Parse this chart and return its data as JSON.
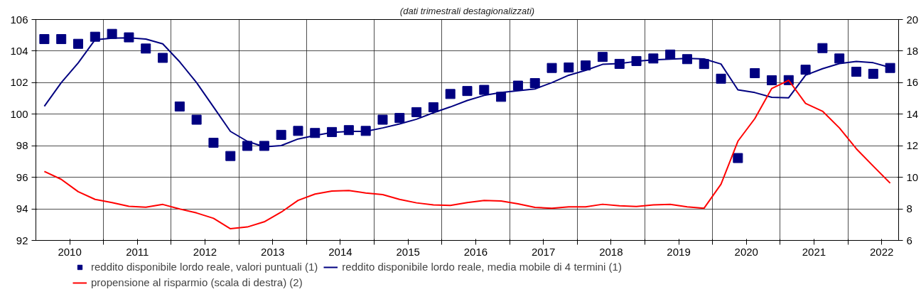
{
  "chart_data": {
    "type": "line",
    "subtitle": "(dati trimestrali destagionalizzati)",
    "x": [
      2010.125,
      2010.375,
      2010.625,
      2010.875,
      2011.125,
      2011.375,
      2011.625,
      2011.875,
      2012.125,
      2012.375,
      2012.625,
      2012.875,
      2013.125,
      2013.375,
      2013.625,
      2013.875,
      2014.125,
      2014.375,
      2014.625,
      2014.875,
      2015.125,
      2015.375,
      2015.625,
      2015.875,
      2016.125,
      2016.375,
      2016.625,
      2016.875,
      2017.125,
      2017.375,
      2017.625,
      2017.875,
      2018.125,
      2018.375,
      2018.625,
      2018.875,
      2019.125,
      2019.375,
      2019.625,
      2019.875,
      2020.125,
      2020.375,
      2020.625,
      2020.875,
      2021.125,
      2021.375,
      2021.625,
      2021.875,
      2022.125,
      2022.375,
      2022.625
    ],
    "series": [
      {
        "name": "reddito disponibile lordo reale, valori puntuali (1)",
        "type": "scatter",
        "marker": "square",
        "color": "#000080",
        "values": [
          104.76,
          104.76,
          104.46,
          104.91,
          105.09,
          104.87,
          104.16,
          103.57,
          100.49,
          99.65,
          98.19,
          97.35,
          97.99,
          97.99,
          98.69,
          98.94,
          98.81,
          98.87,
          98.99,
          98.94,
          99.65,
          99.76,
          100.13,
          100.44,
          101.28,
          101.47,
          101.54,
          101.1,
          101.81,
          101.97,
          102.93,
          102.96,
          103.09,
          103.63,
          103.19,
          103.37,
          103.53,
          103.78,
          103.49,
          103.18,
          102.25,
          97.22,
          102.6,
          102.15,
          102.16,
          102.82,
          104.19,
          103.53,
          102.69,
          102.56,
          102.93
        ]
      },
      {
        "name": "reddito disponibile lordo reale, media mobile di 4 termini (1)",
        "color": "#000080",
        "values": [
          100.5,
          102.0,
          103.25,
          104.72,
          104.82,
          104.84,
          104.76,
          104.46,
          103.32,
          102.0,
          100.46,
          98.91,
          98.28,
          97.93,
          98.01,
          98.43,
          98.65,
          98.84,
          98.91,
          98.91,
          99.13,
          99.38,
          99.68,
          100.09,
          100.46,
          100.87,
          101.19,
          101.37,
          101.49,
          101.6,
          102.0,
          102.47,
          102.78,
          103.16,
          103.21,
          103.35,
          103.44,
          103.49,
          103.54,
          103.5,
          103.18,
          101.54,
          101.37,
          101.07,
          101.04,
          102.47,
          102.88,
          103.21,
          103.34,
          103.26,
          102.96
        ]
      },
      {
        "name": "propensione al risparmio (scala di destra) (2)",
        "axis": "y2",
        "color": "#ff0000",
        "values": [
          10.37,
          9.87,
          9.09,
          8.6,
          8.4,
          8.16,
          8.1,
          8.28,
          7.99,
          7.74,
          7.4,
          6.74,
          6.85,
          7.18,
          7.79,
          8.54,
          8.94,
          9.13,
          9.16,
          9.01,
          8.9,
          8.6,
          8.38,
          8.25,
          8.22,
          8.4,
          8.53,
          8.5,
          8.32,
          8.09,
          8.04,
          8.13,
          8.13,
          8.29,
          8.19,
          8.15,
          8.25,
          8.28,
          8.13,
          8.04,
          9.56,
          12.29,
          13.72,
          15.63,
          16.15,
          14.68,
          14.19,
          13.13,
          11.81,
          10.71,
          9.63
        ]
      }
    ],
    "xlim": [
      2010,
      2022.75
    ],
    "xticks": [
      {
        "value": 2010.5,
        "label": "2010"
      },
      {
        "value": 2011,
        "label": null
      },
      {
        "value": 2011.5,
        "label": "2011"
      },
      {
        "value": 2012,
        "label": null
      },
      {
        "value": 2012.5,
        "label": "2012"
      },
      {
        "value": 2013,
        "label": null
      },
      {
        "value": 2013.5,
        "label": "2013"
      },
      {
        "value": 2014,
        "label": null
      },
      {
        "value": 2014.5,
        "label": "2014"
      },
      {
        "value": 2015,
        "label": null
      },
      {
        "value": 2015.5,
        "label": "2015"
      },
      {
        "value": 2016,
        "label": null
      },
      {
        "value": 2016.5,
        "label": "2016"
      },
      {
        "value": 2017,
        "label": null
      },
      {
        "value": 2017.5,
        "label": "2017"
      },
      {
        "value": 2018,
        "label": null
      },
      {
        "value": 2018.5,
        "label": "2018"
      },
      {
        "value": 2019,
        "label": null
      },
      {
        "value": 2019.5,
        "label": "2019"
      },
      {
        "value": 2020,
        "label": null
      },
      {
        "value": 2020.5,
        "label": "2020"
      },
      {
        "value": 2021,
        "label": null
      },
      {
        "value": 2021.5,
        "label": "2021"
      },
      {
        "value": 2022,
        "label": null
      },
      {
        "value": 2022.5,
        "label": "2022"
      }
    ],
    "ylim": [
      92,
      106
    ],
    "yticks": [
      92,
      94,
      96,
      98,
      100,
      102,
      104,
      106
    ],
    "y2lim": [
      6,
      20
    ],
    "y2ticks": [
      6,
      8,
      10,
      12,
      14,
      16,
      18,
      20
    ],
    "grid": true,
    "legend": "bottom",
    "line_style": "solid"
  }
}
